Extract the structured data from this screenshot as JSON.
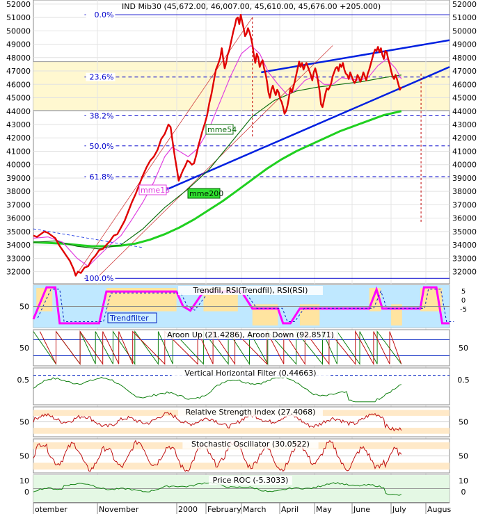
{
  "chart_data": {
    "type": "line",
    "title": "IND Mib30 (45,672.00, 46,007.00, 45,610.00, 45,676.00 +205.000)",
    "x_labels": [
      "otember",
      "November",
      "2000",
      "February",
      "March",
      "April",
      "May",
      "June",
      "July",
      "Augus"
    ],
    "main": {
      "ylim": [
        31200,
        52200
      ],
      "y_ticks": [
        32000,
        33000,
        34000,
        35000,
        36000,
        37000,
        38000,
        39000,
        40000,
        41000,
        42000,
        43000,
        44000,
        45000,
        46000,
        47000,
        48000,
        49000,
        50000,
        51000,
        52000
      ],
      "price": [
        [
          0,
          34700
        ],
        [
          5,
          34600
        ],
        [
          10,
          34800
        ],
        [
          15,
          35000
        ],
        [
          20,
          34900
        ],
        [
          25,
          34700
        ],
        [
          30,
          34500
        ],
        [
          35,
          34000
        ],
        [
          40,
          33600
        ],
        [
          45,
          33200
        ],
        [
          50,
          32800
        ],
        [
          55,
          32200
        ],
        [
          58,
          31700
        ],
        [
          61,
          32000
        ],
        [
          65,
          31900
        ],
        [
          70,
          32300
        ],
        [
          75,
          32400
        ],
        [
          80,
          32900
        ],
        [
          85,
          33200
        ],
        [
          90,
          33600
        ],
        [
          95,
          33700
        ],
        [
          100,
          34000
        ],
        [
          105,
          34300
        ],
        [
          110,
          34700
        ],
        [
          115,
          34800
        ],
        [
          120,
          35300
        ],
        [
          125,
          35800
        ],
        [
          130,
          36500
        ],
        [
          135,
          37200
        ],
        [
          140,
          37800
        ],
        [
          145,
          38500
        ],
        [
          150,
          39200
        ],
        [
          155,
          39800
        ],
        [
          160,
          40300
        ],
        [
          165,
          40600
        ],
        [
          170,
          41100
        ],
        [
          175,
          41900
        ],
        [
          180,
          42300
        ],
        [
          185,
          43000
        ],
        [
          188,
          42800
        ],
        [
          191,
          41600
        ],
        [
          194,
          40500
        ],
        [
          197,
          39500
        ],
        [
          199,
          38800
        ],
        [
          202,
          39200
        ],
        [
          205,
          39600
        ],
        [
          208,
          39900
        ],
        [
          211,
          40300
        ],
        [
          214,
          40200
        ],
        [
          217,
          40000
        ],
        [
          220,
          40100
        ],
        [
          223,
          40700
        ],
        [
          226,
          41400
        ],
        [
          229,
          42000
        ],
        [
          232,
          42600
        ],
        [
          235,
          43100
        ],
        [
          238,
          43700
        ],
        [
          241,
          44600
        ],
        [
          244,
          45300
        ],
        [
          247,
          46200
        ],
        [
          250,
          47100
        ],
        [
          253,
          47500
        ],
        [
          256,
          48000
        ],
        [
          258,
          48700
        ],
        [
          260,
          47900
        ],
        [
          262,
          47200
        ],
        [
          264,
          47600
        ],
        [
          266,
          48200
        ],
        [
          268,
          48500
        ],
        [
          270,
          49000
        ],
        [
          272,
          49500
        ],
        [
          274,
          50000
        ],
        [
          276,
          50400
        ],
        [
          278,
          50900
        ],
        [
          280,
          51000
        ],
        [
          282,
          50500
        ],
        [
          284,
          51200
        ],
        [
          286,
          50700
        ],
        [
          288,
          50200
        ],
        [
          290,
          49600
        ],
        [
          292,
          49800
        ],
        [
          294,
          50200
        ],
        [
          296,
          49900
        ],
        [
          298,
          49500
        ],
        [
          300,
          49000
        ],
        [
          302,
          48200
        ],
        [
          304,
          47600
        ],
        [
          306,
          48300
        ],
        [
          308,
          48000
        ],
        [
          310,
          47300
        ],
        [
          312,
          47600
        ],
        [
          314,
          47800
        ],
        [
          316,
          47200
        ],
        [
          318,
          46800
        ],
        [
          320,
          46200
        ],
        [
          322,
          45400
        ],
        [
          324,
          45000
        ],
        [
          326,
          45600
        ],
        [
          328,
          45900
        ],
        [
          330,
          45500
        ],
        [
          332,
          45200
        ],
        [
          334,
          45600
        ],
        [
          336,
          45400
        ],
        [
          338,
          44900
        ],
        [
          340,
          44700
        ],
        [
          342,
          44300
        ],
        [
          344,
          43800
        ],
        [
          346,
          44000
        ],
        [
          348,
          44400
        ],
        [
          350,
          45000
        ],
        [
          352,
          45700
        ],
        [
          354,
          45400
        ],
        [
          356,
          45800
        ],
        [
          358,
          46200
        ],
        [
          360,
          46700
        ],
        [
          362,
          47200
        ],
        [
          364,
          47700
        ],
        [
          366,
          47300
        ],
        [
          368,
          47600
        ],
        [
          370,
          47100
        ],
        [
          372,
          47400
        ],
        [
          374,
          47600
        ],
        [
          376,
          47300
        ],
        [
          378,
          47000
        ],
        [
          380,
          46700
        ],
        [
          382,
          46300
        ],
        [
          384,
          46900
        ],
        [
          386,
          47200
        ],
        [
          388,
          46800
        ],
        [
          390,
          46200
        ],
        [
          392,
          45500
        ],
        [
          394,
          44500
        ],
        [
          396,
          44300
        ],
        [
          398,
          44800
        ],
        [
          400,
          45300
        ],
        [
          402,
          45700
        ],
        [
          404,
          45600
        ],
        [
          406,
          45800
        ],
        [
          408,
          46100
        ],
        [
          410,
          46600
        ],
        [
          412,
          46900
        ],
        [
          414,
          47200
        ],
        [
          416,
          47300
        ],
        [
          418,
          47000
        ],
        [
          420,
          47500
        ],
        [
          422,
          47300
        ],
        [
          424,
          47600
        ],
        [
          426,
          47100
        ],
        [
          428,
          46800
        ],
        [
          430,
          46700
        ],
        [
          432,
          46400
        ],
        [
          434,
          46900
        ],
        [
          436,
          46600
        ],
        [
          438,
          46300
        ],
        [
          440,
          46100
        ],
        [
          442,
          46300
        ],
        [
          444,
          46700
        ],
        [
          446,
          46500
        ],
        [
          448,
          46200
        ],
        [
          450,
          46500
        ],
        [
          452,
          46900
        ],
        [
          454,
          46600
        ],
        [
          456,
          46300
        ],
        [
          458,
          46800
        ],
        [
          460,
          47100
        ],
        [
          462,
          47500
        ],
        [
          464,
          47900
        ],
        [
          466,
          48300
        ],
        [
          468,
          48600
        ],
        [
          470,
          48500
        ],
        [
          472,
          48800
        ],
        [
          474,
          48400
        ],
        [
          476,
          48700
        ],
        [
          478,
          48200
        ],
        [
          480,
          47900
        ],
        [
          482,
          48500
        ],
        [
          484,
          48400
        ],
        [
          486,
          47900
        ],
        [
          488,
          47500
        ],
        [
          490,
          47000
        ],
        [
          492,
          46600
        ],
        [
          494,
          46400
        ],
        [
          496,
          46700
        ],
        [
          498,
          46400
        ],
        [
          500,
          46000
        ],
        [
          502,
          45600
        ],
        [
          504,
          45800
        ]
      ],
      "mme13": [
        [
          0,
          34500
        ],
        [
          20,
          34600
        ],
        [
          40,
          34200
        ],
        [
          60,
          33000
        ],
        [
          75,
          32400
        ],
        [
          90,
          33200
        ],
        [
          105,
          34000
        ],
        [
          120,
          34700
        ],
        [
          135,
          35900
        ],
        [
          150,
          37200
        ],
        [
          165,
          38700
        ],
        [
          180,
          40600
        ],
        [
          190,
          41300
        ],
        [
          200,
          41000
        ],
        [
          212,
          40600
        ],
        [
          225,
          41200
        ],
        [
          240,
          42600
        ],
        [
          255,
          44600
        ],
        [
          270,
          46600
        ],
        [
          285,
          48300
        ],
        [
          298,
          48900
        ],
        [
          310,
          48300
        ],
        [
          322,
          46900
        ],
        [
          335,
          46000
        ],
        [
          348,
          45200
        ],
        [
          360,
          45600
        ],
        [
          372,
          46300
        ],
        [
          385,
          46600
        ],
        [
          398,
          46000
        ],
        [
          410,
          46000
        ],
        [
          422,
          46500
        ],
        [
          435,
          46400
        ],
        [
          448,
          46300
        ],
        [
          460,
          46600
        ],
        [
          472,
          47400
        ],
        [
          484,
          47900
        ],
        [
          496,
          47200
        ],
        [
          504,
          46400
        ]
      ],
      "mme54": [
        [
          0,
          34200
        ],
        [
          30,
          34300
        ],
        [
          60,
          33900
        ],
        [
          90,
          33700
        ],
        [
          120,
          34000
        ],
        [
          150,
          35200
        ],
        [
          180,
          36800
        ],
        [
          210,
          38100
        ],
        [
          240,
          39600
        ],
        [
          270,
          41600
        ],
        [
          300,
          43600
        ],
        [
          330,
          44800
        ],
        [
          360,
          45500
        ],
        [
          390,
          45800
        ],
        [
          420,
          46000
        ],
        [
          450,
          46200
        ],
        [
          480,
          46500
        ],
        [
          504,
          46700
        ]
      ],
      "mme200": [
        [
          0,
          34200
        ],
        [
          20,
          34150
        ],
        [
          40,
          34100
        ],
        [
          60,
          34000
        ],
        [
          80,
          33900
        ],
        [
          100,
          33900
        ],
        [
          120,
          33950
        ],
        [
          140,
          34100
        ],
        [
          160,
          34400
        ],
        [
          180,
          34800
        ],
        [
          200,
          35300
        ],
        [
          220,
          35900
        ],
        [
          240,
          36600
        ],
        [
          260,
          37300
        ],
        [
          280,
          38100
        ],
        [
          300,
          38900
        ],
        [
          320,
          39700
        ],
        [
          340,
          40400
        ],
        [
          360,
          41000
        ],
        [
          380,
          41500
        ],
        [
          400,
          42000
        ],
        [
          420,
          42500
        ],
        [
          440,
          42900
        ],
        [
          460,
          43300
        ],
        [
          480,
          43700
        ],
        [
          504,
          44000
        ]
      ],
      "fib_levels": [
        {
          "label": "0.0%",
          "value": 51200
        },
        {
          "label": "23.6%",
          "value": 46550
        },
        {
          "label": "38.2%",
          "value": 43650
        },
        {
          "label": "50.0%",
          "value": 41400
        },
        {
          "label": "61.8%",
          "value": 39100
        },
        {
          "label": "100.0%",
          "value": 31500
        }
      ],
      "labels": {
        "mme13": "mme13",
        "mme54": "mme54",
        "mme200": "mme200"
      }
    },
    "panels": [
      {
        "id": "trendfil",
        "title": "Trendfil, RSI(Trendfil), RSI(RSI)",
        "legend": "Trendfilter",
        "left_ticks": [
          "50"
        ],
        "right_ticks": [
          "5",
          "0",
          "-5"
        ]
      },
      {
        "id": "aroon",
        "title": "Aroon Up (21.4286), Aroon Down (92.8571)",
        "left_ticks": [
          "50"
        ],
        "right_ticks": [
          "50"
        ]
      },
      {
        "id": "vhf",
        "title": "Vertical Horizontal Filter (0.44663)",
        "left_ticks": [
          "0.5"
        ],
        "right_ticks": [
          "0.5"
        ]
      },
      {
        "id": "rsi",
        "title": "Relative Strength Index (27.4068)",
        "left_ticks": [
          "50"
        ],
        "right_ticks": [
          "50"
        ]
      },
      {
        "id": "stoch",
        "title": "Stochastic Oscillator (30.0522)",
        "left_ticks": [
          "50"
        ],
        "right_ticks": [
          "50"
        ]
      },
      {
        "id": "roc",
        "title": "Price ROC (-5.3033)",
        "left_ticks": [
          "10",
          "0"
        ],
        "right_ticks": [
          "10",
          "0"
        ]
      }
    ],
    "colors": {
      "price": "#e00000",
      "mme13": "#e040e0",
      "mme54": "#107010",
      "mme200": "#20d020",
      "trend": "#0020e0",
      "fib": "#0000cc",
      "band": "#fff8d0",
      "trendfil_bg": "#bfe8ff",
      "rsi_band": "#ffe9c8",
      "roc_band": "#e4f8e4"
    }
  }
}
